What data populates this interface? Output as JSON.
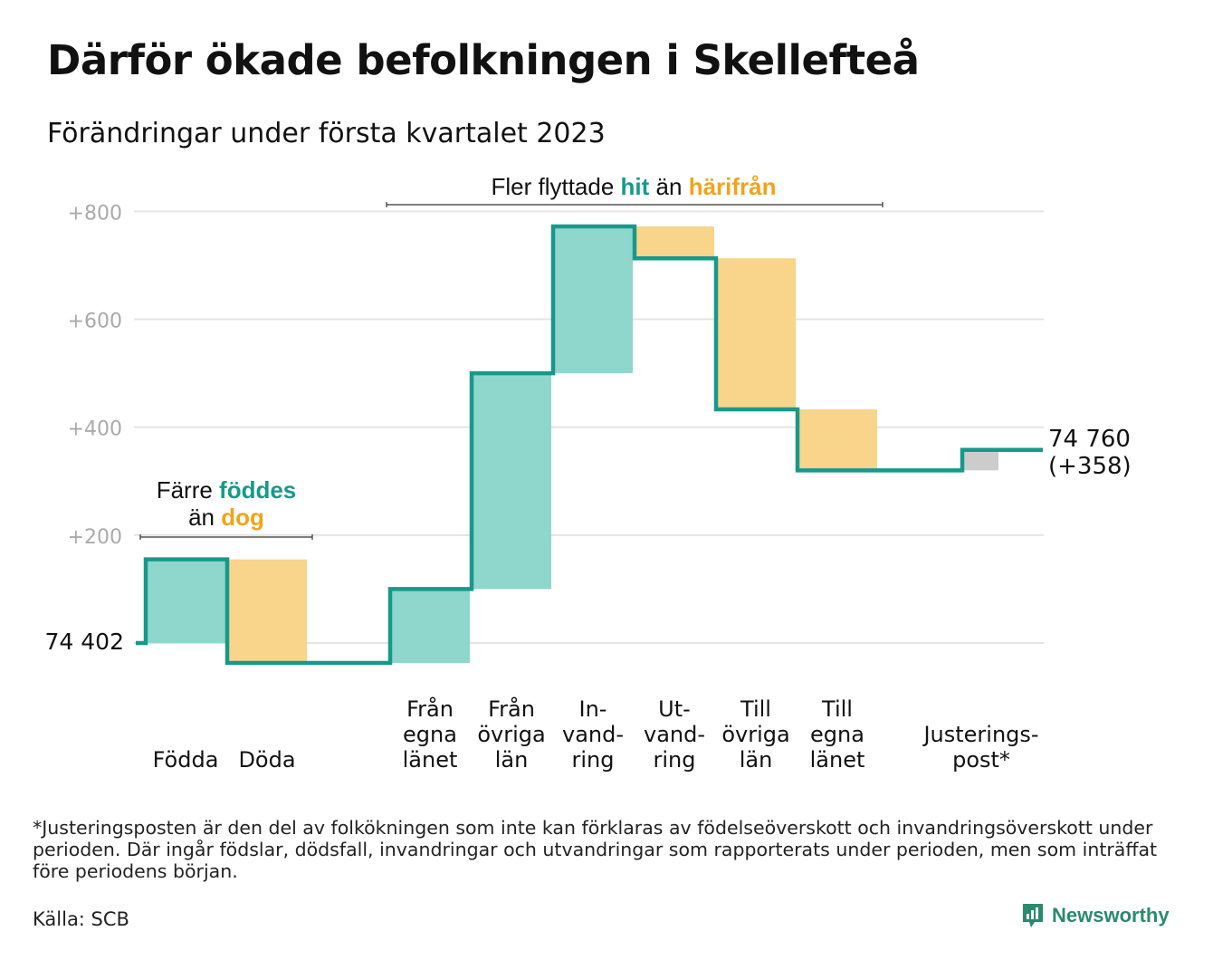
{
  "title": "Därför ökade befolkningen i Skellefteå",
  "subtitle": "Förändringar under första kvartalet 2023",
  "footnote": "*Justeringsposten är den del av folkökningen som inte kan förklaras av födelseöverskott och invandringsöverskott under perioden. Där ingår födslar, dödsfall, invandringar och utvandringar som rapporterats under perioden, men som inträffat före periodens början.",
  "source": "Källa: SCB",
  "brand": "Newsworthy",
  "colors": {
    "increase": "#8fd6cc",
    "decrease": "#f9d48b",
    "adjustment": "#cccccc",
    "line": "#17998a",
    "teal_text": "#17998a",
    "orange_text": "#f2a31b",
    "grid": "#e4e4e4",
    "tick_text": "#aaaaaa",
    "brand": "#2a8a6f"
  },
  "chart_data": {
    "type": "waterfall",
    "start_value_label": "74 402",
    "end_value_label": "74 760",
    "end_change_label": "(+358)",
    "yticks": [
      "+200",
      "+400",
      "+600",
      "+800"
    ],
    "ytick_values": [
      200,
      400,
      600,
      800
    ],
    "ylim": [
      -50,
      850
    ],
    "steps": [
      {
        "label": [
          "Födda"
        ],
        "start": 0,
        "end": 155,
        "kind": "increase"
      },
      {
        "label": [
          "Döda"
        ],
        "start": 155,
        "end": -37,
        "kind": "decrease"
      },
      {
        "label": [
          "Från",
          "egna",
          "länet"
        ],
        "start": -37,
        "end": 100,
        "kind": "increase"
      },
      {
        "label": [
          "Från",
          "övriga",
          "län"
        ],
        "start": 100,
        "end": 500,
        "kind": "increase"
      },
      {
        "label": [
          "In-",
          "vand-",
          "ring"
        ],
        "start": 500,
        "end": 772,
        "kind": "increase"
      },
      {
        "label": [
          "Ut-",
          "vand-",
          "ring"
        ],
        "start": 772,
        "end": 713,
        "kind": "decrease"
      },
      {
        "label": [
          "Till",
          "övriga",
          "län"
        ],
        "start": 713,
        "end": 433,
        "kind": "decrease"
      },
      {
        "label": [
          "Till",
          "egna",
          "länet"
        ],
        "start": 433,
        "end": 320,
        "kind": "decrease"
      },
      {
        "label": [
          "Justerings-",
          "post*"
        ],
        "start": 320,
        "end": 358,
        "kind": "adjustment"
      }
    ],
    "annotations": [
      {
        "parts": [
          {
            "text": "Färre ",
            "color": "dark"
          },
          {
            "text": "föddes",
            "color": "teal"
          }
        ],
        "parts2": [
          {
            "text": "än ",
            "color": "dark"
          },
          {
            "text": "dog",
            "color": "orange"
          }
        ]
      },
      {
        "parts": [
          {
            "text": "Fler flyttade ",
            "color": "dark"
          },
          {
            "text": "hit",
            "color": "teal"
          },
          {
            "text": " än ",
            "color": "dark"
          },
          {
            "text": "härifrån",
            "color": "orange"
          }
        ]
      }
    ]
  }
}
